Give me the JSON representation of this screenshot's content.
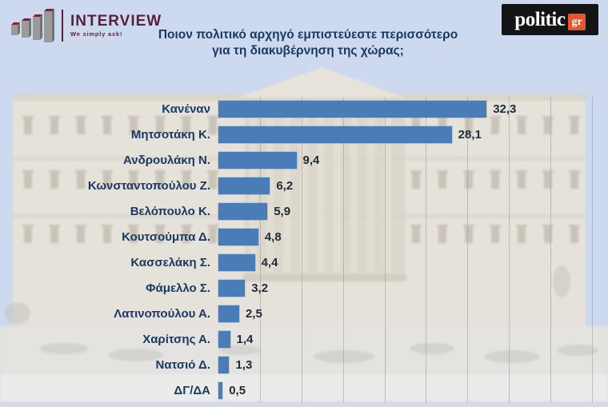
{
  "header": {
    "interview": {
      "brand": "INTERVIEW",
      "tagline": "We simply ask!"
    },
    "politic": {
      "brand": "politic",
      "badge": "gr"
    }
  },
  "title": {
    "line1": "Ποιον πολιτικό αρχηγό εμπιστεύεστε περισσότερο",
    "line2": "για τη διακυβέρνηση της χώρας;"
  },
  "chart_data": {
    "type": "bar",
    "orientation": "horizontal",
    "title": "Ποιον πολιτικό αρχηγό εμπιστεύεστε περισσότερο για τη διακυβέρνηση της χώρας;",
    "categories": [
      "Κανέναν",
      "Μητσοτάκη Κ.",
      "Ανδρουλάκη Ν.",
      "Κωνσταντοπούλου Ζ.",
      "Βελόπουλο Κ.",
      "Κουτσούμπα Δ.",
      "Κασσελάκη Σ.",
      "Φάμελλο Σ.",
      "Λατινοπούλου Α.",
      "Χαρίτσης Α.",
      "Νατσιό Δ.",
      "ΔΓ/ΔΑ"
    ],
    "values": [
      32.3,
      28.1,
      9.4,
      6.2,
      5.9,
      4.8,
      4.4,
      3.2,
      2.5,
      1.4,
      1.3,
      0.5
    ],
    "value_labels": [
      "32,3",
      "28,1",
      "9,4",
      "6,2",
      "5,9",
      "4,8",
      "4,4",
      "3,2",
      "2,5",
      "1,4",
      "1,3",
      "0,5"
    ],
    "xlim": [
      0,
      45
    ],
    "gridline_interval": 5,
    "grid": true,
    "legend": false,
    "bar_color": "#4a7db8",
    "label_color": "#1b3a63",
    "value_color": "#222b38",
    "gridline_color": "#9b9b9b"
  },
  "colors": {
    "sky": "#cdd9ee",
    "navy_text": "#1b3a63",
    "bar_blue": "#4a7db8",
    "logo_maroon": "#5a1e3e",
    "politic_black": "#141414",
    "politic_orange": "#e4572e"
  }
}
